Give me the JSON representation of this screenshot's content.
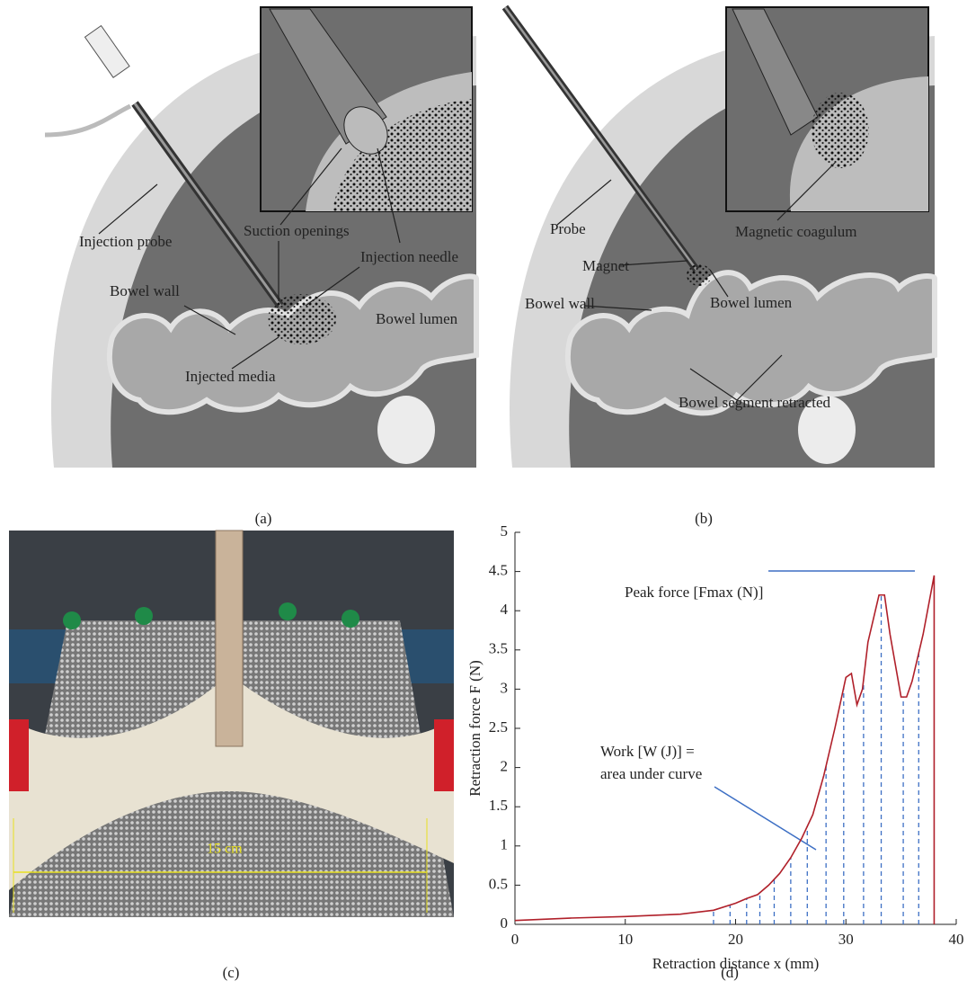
{
  "panel_a": {
    "caption": "(a)",
    "labels": {
      "injection_probe": "Injection probe",
      "suction_openings": "Suction openings",
      "injection_needle": "Injection needle",
      "bowel_wall": "Bowel wall",
      "bowel_lumen": "Bowel lumen",
      "injected_media": "Injected media"
    }
  },
  "panel_b": {
    "caption": "(b)",
    "labels": {
      "probe": "Probe",
      "magnetic_coagulum": "Magnetic coagulum",
      "magnet": "Magnet",
      "bowel_wall": "Bowel wall",
      "bowel_lumen": "Bowel lumen",
      "bowel_segment_retracted": "Bowel segment retracted"
    }
  },
  "panel_c": {
    "caption": "(c)",
    "scale_label": "15 cm"
  },
  "chart_data": {
    "type": "line",
    "caption": "(d)",
    "xlabel": "Retraction distance x (mm)",
    "ylabel": "Retraction force F (N)",
    "annotations": {
      "peak": "Peak force [Fmax (N)]",
      "work_1": "Work [W (J)] =",
      "work_2": "area under curve"
    },
    "x": [
      0,
      5,
      10,
      15,
      18,
      20,
      21,
      22,
      23,
      24,
      25,
      26,
      27,
      28,
      29,
      30,
      30.5,
      31,
      31.5,
      32,
      33,
      33.5,
      34,
      35,
      35.5,
      36,
      37,
      38,
      38
    ],
    "values": [
      0.05,
      0.08,
      0.1,
      0.13,
      0.18,
      0.27,
      0.33,
      0.38,
      0.5,
      0.65,
      0.85,
      1.1,
      1.4,
      1.9,
      2.5,
      3.15,
      3.2,
      2.8,
      3.0,
      3.6,
      4.2,
      4.2,
      3.7,
      2.9,
      2.9,
      3.1,
      3.7,
      4.45,
      0
    ],
    "color": "#b0202a",
    "area_lines_x": [
      18,
      19.5,
      21,
      22.2,
      23.5,
      25,
      26.5,
      28.2,
      29.8,
      31.6,
      33.2,
      35.2,
      36.6
    ],
    "area_lines_color": "#3d6fc4",
    "xlim": [
      0,
      40
    ],
    "xticks": [
      0,
      10,
      20,
      30,
      40
    ],
    "ylim": [
      0,
      5
    ],
    "yticks": [
      0,
      0.5,
      1,
      1.5,
      2,
      2.5,
      3,
      3.5,
      4,
      4.5,
      5
    ]
  }
}
